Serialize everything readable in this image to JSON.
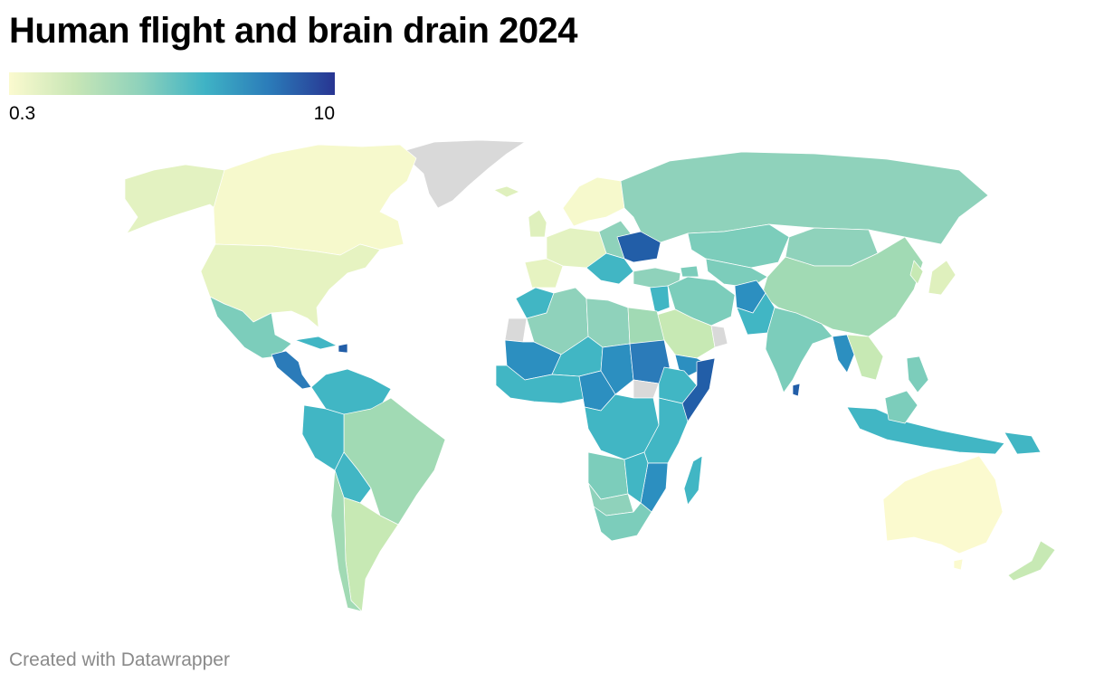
{
  "title": "Human flight and brain drain 2024",
  "legend": {
    "min_label": "0.3",
    "max_label": "10",
    "color_stops": [
      "#fbfacf",
      "#c8e6b6",
      "#8fd2bb",
      "#3fb3c5",
      "#2b7bb9",
      "#283592"
    ]
  },
  "colors": {
    "no_data": "#d9d9d9",
    "border": "#ffffff"
  },
  "credit": "Created with Datawrapper"
}
